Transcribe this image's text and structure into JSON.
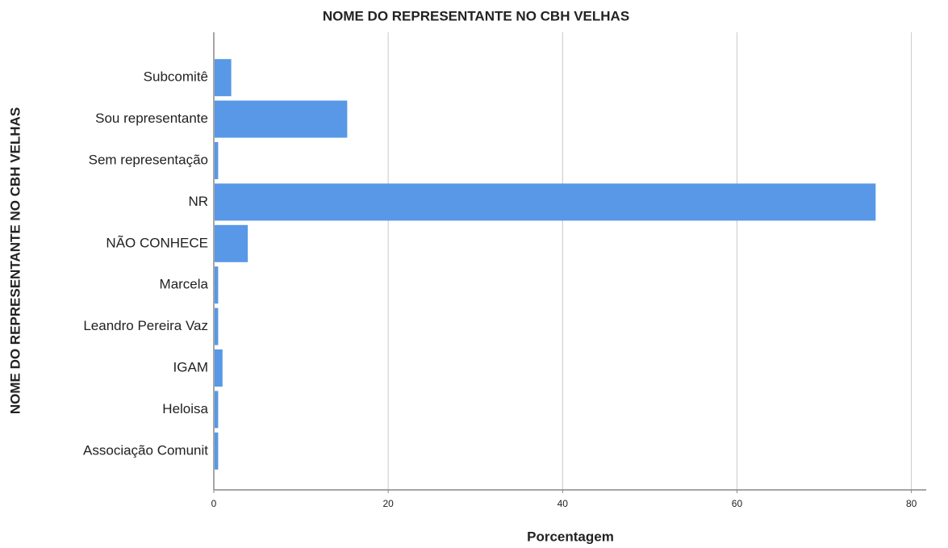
{
  "chart_data": {
    "type": "hbar",
    "title": "NOME DO REPRESENTANTE NO CBH VELHAS",
    "x_label": "Porcentagem",
    "y_label": "NOME DO REPRESENTANTE NO CBH VELHAS",
    "categories": [
      "Subcomitê",
      "Sou representante",
      "Sem representação",
      "NR",
      "NÃO CONHECE",
      "Marcela",
      "Leandro Pereira Vaz",
      "IGAM",
      "Heloisa",
      "Associação Comunit"
    ],
    "values": [
      2.0,
      15.3,
      0.5,
      75.9,
      3.9,
      0.5,
      0.5,
      1.0,
      0.5,
      0.5
    ],
    "color": "#5898e6",
    "xlim": [
      0,
      81.7
    ],
    "xticks": [
      0,
      20,
      40,
      60,
      80
    ],
    "grid": true
  }
}
